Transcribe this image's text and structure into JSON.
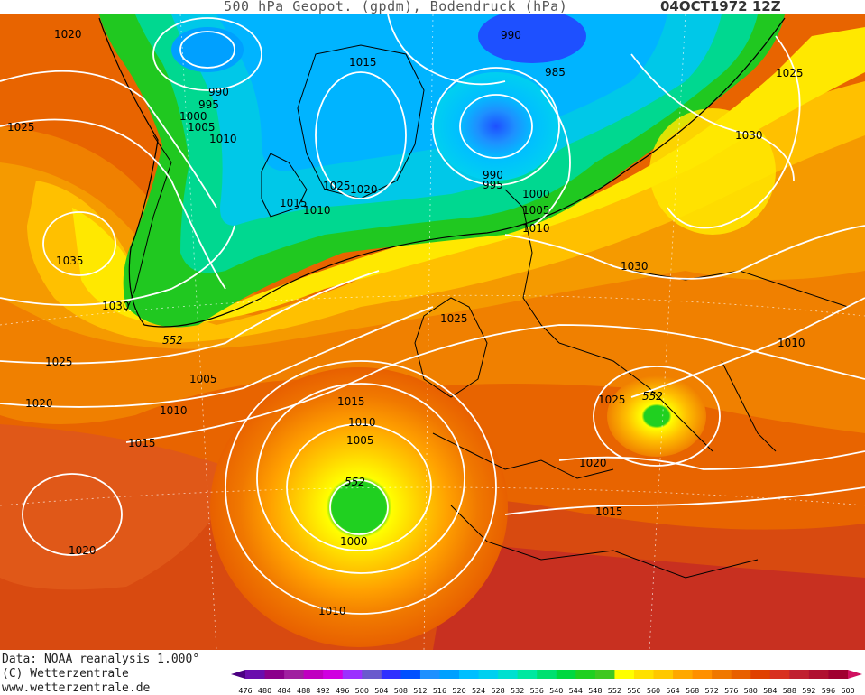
{
  "title": "500 hPa Geopot. (gpdm), Bodendruck (hPa)",
  "date": "04OCT1972 12Z",
  "credits": {
    "data": "Data: NOAA reanalysis 1.000°",
    "copyright": "(C) Wetterzentrale",
    "url": "www.wetterzentrale.de"
  },
  "colorbar": {
    "ticks": [
      "476",
      "480",
      "484",
      "488",
      "492",
      "496",
      "500",
      "504",
      "508",
      "512",
      "516",
      "520",
      "524",
      "528",
      "532",
      "536",
      "540",
      "544",
      "548",
      "552",
      "556",
      "560",
      "564",
      "568",
      "572",
      "576",
      "580",
      "584",
      "588",
      "592",
      "596",
      "600"
    ],
    "colors": [
      "#4b0082",
      "#6a0dad",
      "#8b008b",
      "#a020a0",
      "#c000c0",
      "#d000e0",
      "#9b30ff",
      "#6a5acd",
      "#3030ff",
      "#0050ff",
      "#1e90ff",
      "#00a0ff",
      "#00bfff",
      "#00d0f0",
      "#00e0d0",
      "#00e8a0",
      "#00e070",
      "#00d840",
      "#20d020",
      "#40c820",
      "#ffff00",
      "#ffe000",
      "#ffc800",
      "#ffa800",
      "#ff9000",
      "#f07800",
      "#e86000",
      "#e04000",
      "#d83020",
      "#c02030",
      "#b01030",
      "#a00030",
      "#d01060"
    ]
  },
  "contour_labels": {
    "552": "552",
    "isobars": [
      "1020",
      "1025",
      "1035",
      "1030",
      "1025",
      "1020",
      "1015",
      "1010",
      "1005",
      "990",
      "995",
      "1000",
      "1005",
      "1010",
      "1015",
      "1025",
      "1020",
      "1010",
      "1015",
      "990",
      "985",
      "990",
      "995",
      "1000",
      "1005",
      "1010",
      "1025",
      "1030",
      "1030",
      "1025",
      "1010",
      "1025",
      "1020",
      "1015",
      "1015",
      "1010",
      "1005",
      "1000",
      "1010",
      "1020"
    ]
  },
  "legend_552_labels": [
    "552",
    "552",
    "552"
  ]
}
